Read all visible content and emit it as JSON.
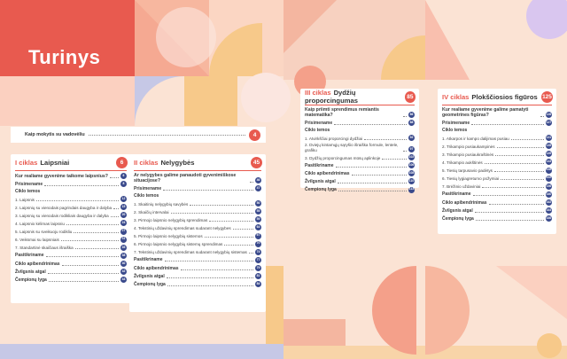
{
  "title": "Turinys",
  "intro": {
    "label": "Kaip mokytis su vadovėliu",
    "page": "4"
  },
  "cycles": [
    {
      "id": "I",
      "ciklas": "I ciklas",
      "name": "Laipsniai",
      "page": "6",
      "question": "Kur realiame gyvenime taikome laipsnius?",
      "question_page": "6",
      "prisimename": "Prisimename",
      "prisimename_page": "8",
      "temos_label": "Ciklo temos",
      "topics": [
        {
          "t": "1. Laipsnis",
          "p": "12"
        },
        {
          "t": "2. Laipsnių su vienodais pagrindais daugyba ir dalyba",
          "p": "15"
        },
        {
          "t": "3. Laipsnių su vienodais rodikliais daugyba ir dalyba",
          "p": "20"
        },
        {
          "t": "4. Laipsnio kėlimas laipsniu",
          "p": "24"
        },
        {
          "t": "5. Laipsnis su sveikuoju rodikliu",
          "p": "27"
        },
        {
          "t": "6. Veiksmai su laipsniais",
          "p": "31"
        },
        {
          "t": "7. Standartinė skaičiaus išraiška",
          "p": "35"
        }
      ],
      "tail": [
        {
          "t": "Pasitikriname",
          "p": "38"
        },
        {
          "t": "Ciklo apibendrinimas",
          "p": "40"
        },
        {
          "t": "Žvilgsnis atgal",
          "p": "42"
        },
        {
          "t": "Čempionų lyga",
          "p": "44"
        }
      ]
    },
    {
      "id": "II",
      "ciklas": "II ciklas",
      "name": "Nelygybės",
      "page": "45",
      "question": "Ar nelygybes galime panaudoti gyvenimiškose situacijose?",
      "question_page": "46",
      "prisimename": "Prisimename",
      "prisimename_page": "47",
      "temos_label": "Ciklo temos",
      "topics": [
        {
          "t": "1. Skaitinių nelygybių savybės",
          "p": "50"
        },
        {
          "t": "2. Skaičių intervalai",
          "p": "55"
        },
        {
          "t": "3. Pirmojo laipsnio nelygybių sprendimas",
          "p": "59"
        },
        {
          "t": "4. Tekstinių uždavinių sprendimas sudarant nelygybes",
          "p": "64"
        },
        {
          "t": "5. Pirmojo laipsnio nelygybių sistemos",
          "p": "67"
        },
        {
          "t": "6. Pirmojo laipsnio nelygybių sistemų sprendimas",
          "p": "70"
        },
        {
          "t": "7. Tekstinių uždavinių sprendimas sudarant nelygybių sistemas",
          "p": "74"
        }
      ],
      "tail": [
        {
          "t": "Pasitikriname",
          "p": "77"
        },
        {
          "t": "Ciklo apibendrinimas",
          "p": "79"
        },
        {
          "t": "Žvilgsnis atgal",
          "p": "81"
        },
        {
          "t": "Čempionų lyga",
          "p": "84"
        }
      ]
    },
    {
      "id": "III",
      "ciklas": "III ciklas",
      "name": "Dydžių proporcingumas",
      "page": "85",
      "question": "Kaip priimti sprendimus remiantis matematika?",
      "question_page": "86",
      "prisimename": "Prisimename",
      "prisimename_page": "88",
      "temos_label": "Ciklo temos",
      "topics": [
        {
          "t": "1. Atvirkščiai proporcingi dydžiai",
          "p": "92"
        },
        {
          "t": "2. Dviejų kintamųjų sąryšio išraiška formule, lentele, grafiku",
          "p": "97"
        },
        {
          "t": "3. Dydžių proporcingumas mūsų aplinkoje",
          "p": "102"
        }
      ],
      "tail": [
        {
          "t": "Pasitikriname",
          "p": "106"
        },
        {
          "t": "Ciklo apibendrinimas",
          "p": "108"
        },
        {
          "t": "Žvilgsnis atgal",
          "p": "110"
        },
        {
          "t": "Čempionų lyga",
          "p": "113"
        }
      ]
    },
    {
      "id": "IV",
      "ciklas": "IV ciklas",
      "name": "Plokščiosios figūros",
      "page": "125",
      "question": "Kur realiame gyvenime galime pamatyti geometrines figūras?",
      "question_page": "126",
      "prisimename": "Prisimename",
      "prisimename_page": "127",
      "temos_label": "Ciklo temos",
      "topics": [
        {
          "t": "1. Atkarpos ir kampo dalijimas pusiau",
          "p": "131"
        },
        {
          "t": "2. Trikampio pusiaukampinės",
          "p": "135"
        },
        {
          "t": "3. Trikampio pusiaukraštinės",
          "p": "139"
        },
        {
          "t": "4. Trikampio aukštinės",
          "p": "143"
        },
        {
          "t": "5. Tiesių tarpusavio padėtys",
          "p": "148"
        },
        {
          "t": "6. Tiesių lygiagretumo požymiai",
          "p": "152"
        },
        {
          "t": "7. Brėžinio uždaviniai",
          "p": "156"
        }
      ],
      "tail": [
        {
          "t": "Pasitikriname",
          "p": "160"
        },
        {
          "t": "Ciklo apibendrinimas",
          "p": "162"
        },
        {
          "t": "Žvilgsnis atgal",
          "p": "164"
        },
        {
          "t": "Čempionų lyga",
          "p": "166"
        }
      ]
    }
  ],
  "colors": {
    "accent": "#e85a4f",
    "badge": "#3a4a8c",
    "peach": "#fbe3d4",
    "lavender": "#c6c8e6",
    "yellow": "#f7c98a"
  }
}
